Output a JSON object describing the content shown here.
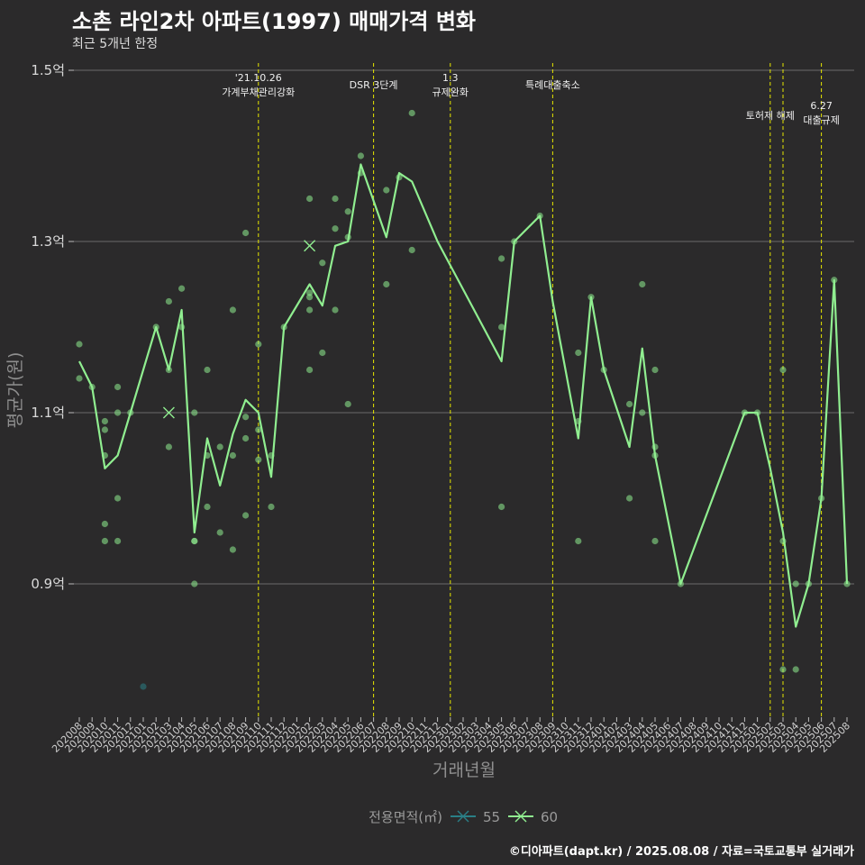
{
  "title": "소촌 라인2차 아파트(1997) 매매가격 변화",
  "subtitle": "최근 5개년 한정",
  "caption": "©디아파트(dapt.kr) / 2025.08.08 / 자료=국토교통부 실거래가",
  "chart_data": {
    "type": "line",
    "xlabel": "거래년월",
    "ylabel": "평균가(원)",
    "ylim": [
      0.75,
      1.52
    ],
    "yticks": [
      {
        "value": 0.9,
        "label": "0.9억"
      },
      {
        "value": 1.1,
        "label": "1.1억"
      },
      {
        "value": 1.3,
        "label": "1.3억"
      },
      {
        "value": 1.5,
        "label": "1.5억"
      }
    ],
    "grid": true,
    "categories": [
      "202008",
      "202009",
      "202010",
      "202011",
      "202012",
      "202101",
      "202102",
      "202103",
      "202104",
      "202105",
      "202106",
      "202107",
      "202108",
      "202109",
      "202110",
      "202111",
      "202112",
      "202201",
      "202202",
      "202203",
      "202204",
      "202205",
      "202206",
      "202207",
      "202208",
      "202209",
      "202210",
      "202211",
      "202212",
      "202301",
      "202302",
      "202303",
      "202304",
      "202305",
      "202306",
      "202307",
      "202308",
      "202309",
      "202310",
      "202311",
      "202312",
      "202401",
      "202402",
      "202403",
      "202404",
      "202405",
      "202406",
      "202407",
      "202408",
      "202409",
      "202410",
      "202411",
      "202412",
      "202501",
      "202502",
      "202503",
      "202504",
      "202505",
      "202506",
      "202507",
      "202508"
    ],
    "legend": {
      "title": "전용면적(㎡)",
      "position": "bottom"
    },
    "series": [
      {
        "name": "55",
        "color": "#2a7f86",
        "line": [],
        "points": [
          [
            5,
            0.78
          ]
        ],
        "marker_points": []
      },
      {
        "name": "60",
        "color": "#90ee90",
        "line": [
          [
            0,
            1.16
          ],
          [
            1,
            1.13
          ],
          [
            2,
            1.035
          ],
          [
            3,
            1.05
          ],
          [
            4,
            1.1
          ],
          [
            6,
            1.2
          ],
          [
            7,
            1.15
          ],
          [
            8,
            1.22
          ],
          [
            9,
            0.96
          ],
          [
            10,
            1.07
          ],
          [
            11,
            1.015
          ],
          [
            12,
            1.075
          ],
          [
            13,
            1.115
          ],
          [
            14,
            1.1
          ],
          [
            15,
            1.025
          ],
          [
            16,
            1.2
          ],
          [
            18,
            1.25
          ],
          [
            19,
            1.225
          ],
          [
            20,
            1.295
          ],
          [
            21,
            1.3
          ],
          [
            22,
            1.39
          ],
          [
            24,
            1.305
          ],
          [
            25,
            1.38
          ],
          [
            26,
            1.37
          ],
          [
            28,
            1.3
          ],
          [
            33,
            1.16
          ],
          [
            34,
            1.3
          ],
          [
            36,
            1.33
          ],
          [
            37,
            1.23
          ],
          [
            39,
            1.07
          ],
          [
            40,
            1.235
          ],
          [
            41,
            1.15
          ],
          [
            43,
            1.06
          ],
          [
            44,
            1.175
          ],
          [
            45,
            1.05
          ],
          [
            47,
            0.9
          ],
          [
            52,
            1.1
          ],
          [
            53,
            1.1
          ],
          [
            54,
            1.035
          ],
          [
            55,
            0.96
          ],
          [
            56,
            0.85
          ],
          [
            57,
            0.9
          ],
          [
            58,
            1.0
          ],
          [
            59,
            1.255
          ],
          [
            60,
            0.9
          ]
        ],
        "points": [
          [
            0,
            1.18
          ],
          [
            0,
            1.14
          ],
          [
            1,
            1.13
          ],
          [
            2,
            1.09
          ],
          [
            2,
            1.08
          ],
          [
            2,
            1.05
          ],
          [
            2,
            0.97
          ],
          [
            2,
            0.95
          ],
          [
            3,
            1.13
          ],
          [
            3,
            1.1
          ],
          [
            3,
            1.0
          ],
          [
            3,
            0.95
          ],
          [
            4,
            1.1
          ],
          [
            6,
            1.2
          ],
          [
            7,
            1.23
          ],
          [
            7,
            1.15
          ],
          [
            7,
            1.06
          ],
          [
            8,
            1.245
          ],
          [
            8,
            1.2
          ],
          [
            9,
            1.1
          ],
          [
            9,
            0.95
          ],
          [
            9,
            0.95
          ],
          [
            9,
            0.9
          ],
          [
            10,
            1.15
          ],
          [
            10,
            1.05
          ],
          [
            10,
            0.99
          ],
          [
            11,
            1.06
          ],
          [
            11,
            0.96
          ],
          [
            12,
            1.22
          ],
          [
            12,
            1.05
          ],
          [
            12,
            0.94
          ],
          [
            13,
            1.31
          ],
          [
            13,
            1.095
          ],
          [
            13,
            1.07
          ],
          [
            13,
            0.98
          ],
          [
            14,
            1.18
          ],
          [
            14,
            1.08
          ],
          [
            14,
            1.045
          ],
          [
            15,
            1.05
          ],
          [
            15,
            0.99
          ],
          [
            16,
            1.2
          ],
          [
            18,
            1.35
          ],
          [
            18,
            1.24
          ],
          [
            18,
            1.235
          ],
          [
            18,
            1.22
          ],
          [
            18,
            1.15
          ],
          [
            19,
            1.275
          ],
          [
            19,
            1.17
          ],
          [
            20,
            1.35
          ],
          [
            20,
            1.315
          ],
          [
            20,
            1.22
          ],
          [
            21,
            1.335
          ],
          [
            21,
            1.305
          ],
          [
            21,
            1.11
          ],
          [
            22,
            1.4
          ],
          [
            22,
            1.38
          ],
          [
            24,
            1.36
          ],
          [
            24,
            1.25
          ],
          [
            25,
            1.375
          ],
          [
            26,
            1.45
          ],
          [
            26,
            1.29
          ],
          [
            33,
            1.28
          ],
          [
            33,
            1.2
          ],
          [
            33,
            0.99
          ],
          [
            34,
            1.3
          ],
          [
            36,
            1.33
          ],
          [
            39,
            1.17
          ],
          [
            39,
            1.09
          ],
          [
            39,
            0.95
          ],
          [
            40,
            1.235
          ],
          [
            41,
            1.15
          ],
          [
            43,
            1.11
          ],
          [
            43,
            1.0
          ],
          [
            44,
            1.25
          ],
          [
            44,
            1.1
          ],
          [
            45,
            1.15
          ],
          [
            45,
            1.06
          ],
          [
            45,
            1.05
          ],
          [
            45,
            0.95
          ],
          [
            47,
            0.9
          ],
          [
            52,
            1.1
          ],
          [
            53,
            1.1
          ],
          [
            55,
            1.15
          ],
          [
            55,
            0.95
          ],
          [
            55,
            0.8
          ],
          [
            56,
            0.9
          ],
          [
            56,
            0.8
          ],
          [
            57,
            0.9
          ],
          [
            58,
            1.0
          ],
          [
            59,
            1.255
          ],
          [
            60,
            0.9
          ]
        ],
        "marker_points": [
          [
            7,
            1.1
          ],
          [
            18,
            1.295
          ]
        ]
      }
    ],
    "annotations": [
      {
        "x": 14,
        "lines": [
          "'21.10.26",
          "가계부채관리강화"
        ],
        "level": 0
      },
      {
        "x": 23,
        "lines": [
          "DSR 3단계"
        ],
        "level": 2
      },
      {
        "x": 29,
        "lines": [
          "1.3",
          "규제완화"
        ],
        "level": 0
      },
      {
        "x": 37,
        "lines": [
          "특례대출축소"
        ],
        "level": 2
      },
      {
        "x": 54,
        "lines": [
          "토허제 해제"
        ],
        "level": 1
      },
      {
        "x": 55,
        "lines": [],
        "level": 1
      },
      {
        "x": 58,
        "lines": [
          "6.27",
          "대출규제"
        ],
        "level": 3
      }
    ]
  }
}
